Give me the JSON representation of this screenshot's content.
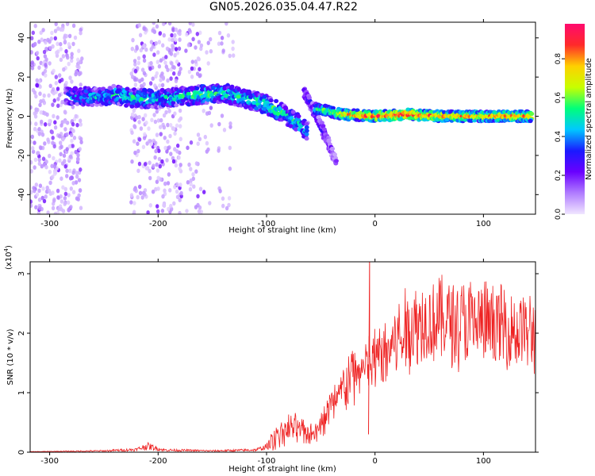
{
  "title": "GN05.2026.035.04.47.R22",
  "colors": {
    "snr_line": "#ee2222",
    "colormap": [
      "#f0e6ff",
      "#b07cff",
      "#6a00ff",
      "#1a1aff",
      "#00c8ff",
      "#00ff7a",
      "#c8ff00",
      "#ffd000",
      "#ff2a2a",
      "#ff0a6e"
    ]
  },
  "chart_data": [
    {
      "type": "heatmap",
      "xlabel": "Height of straight line (km)",
      "ylabel": "Frequency (Hz)",
      "xlim": [
        -318,
        148
      ],
      "ylim": [
        -50,
        48
      ],
      "xticks": [
        -300,
        -200,
        -100,
        0,
        100
      ],
      "yticks": [
        -40,
        -20,
        0,
        20,
        40
      ],
      "colorbar": {
        "label": "Normalized spectral amplitude",
        "range": [
          0,
          0.98
        ],
        "ticks": [
          "0.0",
          "0.2",
          "0.4",
          "0.6",
          "0.8"
        ],
        "tick_values": [
          0,
          0.2,
          0.4,
          0.6,
          0.8
        ]
      },
      "ridge_main": [
        {
          "x": -285,
          "y": 10,
          "amp": 0.35
        },
        {
          "x": -250,
          "y": 10,
          "amp": 0.45
        },
        {
          "x": -240,
          "y": 11,
          "amp": 0.5
        },
        {
          "x": -220,
          "y": 9,
          "amp": 0.55
        },
        {
          "x": -200,
          "y": 9,
          "amp": 0.45
        },
        {
          "x": -180,
          "y": 10,
          "amp": 0.5
        },
        {
          "x": -160,
          "y": 11,
          "amp": 0.55
        },
        {
          "x": -140,
          "y": 12,
          "amp": 0.5
        },
        {
          "x": -120,
          "y": 9,
          "amp": 0.5
        },
        {
          "x": -100,
          "y": 6,
          "amp": 0.55
        },
        {
          "x": -90,
          "y": 3,
          "amp": 0.55
        },
        {
          "x": -80,
          "y": 0,
          "amp": 0.5
        },
        {
          "x": -70,
          "y": -4,
          "amp": 0.5
        },
        {
          "x": -62,
          "y": -8,
          "amp": 0.4
        }
      ],
      "ridge_secondary": [
        {
          "x": -65,
          "y": 12,
          "amp": 0.25
        },
        {
          "x": -58,
          "y": 5,
          "amp": 0.3
        },
        {
          "x": -50,
          "y": -5,
          "amp": 0.3
        },
        {
          "x": -42,
          "y": -15,
          "amp": 0.2
        },
        {
          "x": -35,
          "y": -25,
          "amp": 0.15
        }
      ],
      "ridge_flat": [
        {
          "x": -55,
          "y": 4,
          "amp": 0.5
        },
        {
          "x": -30,
          "y": 1,
          "amp": 0.8
        },
        {
          "x": 0,
          "y": 0,
          "amp": 0.9
        },
        {
          "x": 30,
          "y": 1,
          "amp": 0.95
        },
        {
          "x": 60,
          "y": 0,
          "amp": 0.85
        },
        {
          "x": 90,
          "y": 0,
          "amp": 0.8
        },
        {
          "x": 120,
          "y": 0,
          "amp": 0.85
        },
        {
          "x": 145,
          "y": 0,
          "amp": 0.85
        }
      ],
      "noise_bands": [
        {
          "x_from": -318,
          "x_to": -270,
          "density": 0.9
        },
        {
          "x_from": -225,
          "x_to": -178,
          "density": 0.8
        },
        {
          "x_from": -175,
          "x_to": -150,
          "density": 0.35
        },
        {
          "x_from": -145,
          "x_to": -130,
          "density": 0.25
        }
      ]
    },
    {
      "type": "line",
      "xlabel": "Height of straight line (km)",
      "ylabel": "SNR (10 * v/v)",
      "scale_label": "(x10",
      "scale_exp": "4",
      "scale_close": ")",
      "xlim": [
        -318,
        148
      ],
      "ylim": [
        0,
        3.2
      ],
      "xticks": [
        -300,
        -200,
        -100,
        0,
        100
      ],
      "yticks": [
        0,
        1,
        2,
        3
      ],
      "series": [
        {
          "envelope": [
            {
              "x": -318,
              "y": 0.01
            },
            {
              "x": -250,
              "y": 0.03
            },
            {
              "x": -220,
              "y": 0.06
            },
            {
              "x": -210,
              "y": 0.14
            },
            {
              "x": -195,
              "y": 0.05
            },
            {
              "x": -150,
              "y": 0.03
            },
            {
              "x": -110,
              "y": 0.05
            },
            {
              "x": -100,
              "y": 0.12
            },
            {
              "x": -90,
              "y": 0.35
            },
            {
              "x": -80,
              "y": 0.45
            },
            {
              "x": -70,
              "y": 0.45
            },
            {
              "x": -60,
              "y": 0.35
            },
            {
              "x": -50,
              "y": 0.55
            },
            {
              "x": -40,
              "y": 0.9
            },
            {
              "x": -30,
              "y": 1.2
            },
            {
              "x": -20,
              "y": 1.5
            },
            {
              "x": -10,
              "y": 1.6
            },
            {
              "x": 0,
              "y": 1.75
            },
            {
              "x": 10,
              "y": 1.95
            },
            {
              "x": 20,
              "y": 2.15
            },
            {
              "x": 30,
              "y": 2.35
            },
            {
              "x": 40,
              "y": 2.5
            },
            {
              "x": 60,
              "y": 2.55
            },
            {
              "x": 80,
              "y": 2.5
            },
            {
              "x": 100,
              "y": 2.45
            },
            {
              "x": 120,
              "y": 2.4
            },
            {
              "x": 140,
              "y": 2.3
            },
            {
              "x": 148,
              "y": 2.25
            }
          ],
          "spikes": [
            {
              "x": -5,
              "y": 3.2
            },
            {
              "x": -6,
              "y": 0.3
            }
          ]
        }
      ]
    }
  ]
}
